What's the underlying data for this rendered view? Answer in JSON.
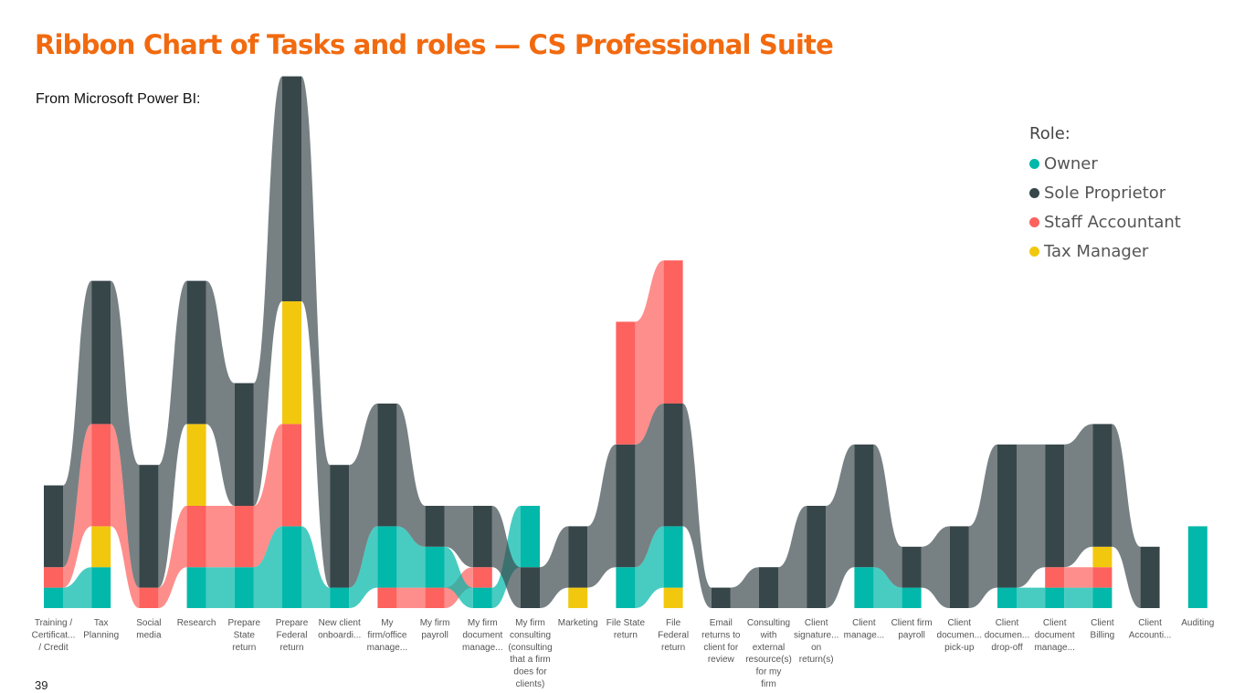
{
  "page": {
    "title": "Ribbon Chart of Tasks and roles — CS Professional Suite",
    "subtitle": "From Microsoft Power BI:",
    "page_number": "39"
  },
  "chart_data": {
    "type": "ribbon",
    "legend": {
      "title": "Role:",
      "placement": "top-right",
      "entries": [
        {
          "name": "Owner",
          "color": "#01b8aa"
        },
        {
          "name": "Sole Proprietor",
          "color": "#374649"
        },
        {
          "name": "Staff Accountant",
          "color": "#fd625e"
        },
        {
          "name": "Tax Manager",
          "color": "#f2c80f"
        }
      ]
    },
    "colors": {
      "Owner": "#01b8aa",
      "Sole Proprietor": "#374649",
      "Staff Accountant": "#fd625e",
      "Tax Manager": "#f2c80f"
    },
    "ylim": [
      0,
      26
    ],
    "categories": [
      {
        "label": [
          "Training /",
          "Certificat...",
          "/ Credit"
        ],
        "segments": [
          [
            "Owner",
            1
          ],
          [
            "Staff Accountant",
            1
          ],
          [
            "Sole Proprietor",
            4
          ]
        ]
      },
      {
        "label": [
          "Tax",
          "Planning"
        ],
        "segments": [
          [
            "Owner",
            2
          ],
          [
            "Tax Manager",
            2
          ],
          [
            "Staff Accountant",
            5
          ],
          [
            "Sole Proprietor",
            7
          ]
        ]
      },
      {
        "label": [
          "Social",
          "media"
        ],
        "segments": [
          [
            "Staff Accountant",
            1
          ],
          [
            "Sole Proprietor",
            6
          ]
        ]
      },
      {
        "label": [
          "Research"
        ],
        "segments": [
          [
            "Owner",
            2
          ],
          [
            "Staff Accountant",
            3
          ],
          [
            "Tax Manager",
            4
          ],
          [
            "Sole Proprietor",
            7
          ]
        ]
      },
      {
        "label": [
          "Prepare",
          "State",
          "return"
        ],
        "segments": [
          [
            "Owner",
            2
          ],
          [
            "Staff Accountant",
            3
          ],
          [
            "Sole Proprietor",
            6
          ]
        ]
      },
      {
        "label": [
          "Prepare",
          "Federal",
          "return"
        ],
        "segments": [
          [
            "Owner",
            4
          ],
          [
            "Staff Accountant",
            5
          ],
          [
            "Tax Manager",
            6
          ],
          [
            "Sole Proprietor",
            11
          ]
        ]
      },
      {
        "label": [
          "New client",
          "onboardi..."
        ],
        "segments": [
          [
            "Owner",
            1
          ],
          [
            "Sole Proprietor",
            6
          ]
        ]
      },
      {
        "label": [
          "My",
          "firm/office",
          "manage..."
        ],
        "segments": [
          [
            "Staff Accountant",
            1
          ],
          [
            "Owner",
            3
          ],
          [
            "Sole Proprietor",
            6
          ]
        ]
      },
      {
        "label": [
          "My firm",
          "payroll"
        ],
        "segments": [
          [
            "Staff Accountant",
            1
          ],
          [
            "Owner",
            2
          ],
          [
            "Sole Proprietor",
            2
          ]
        ]
      },
      {
        "label": [
          "My firm",
          "document",
          "manage..."
        ],
        "segments": [
          [
            "Owner",
            1
          ],
          [
            "Staff Accountant",
            1
          ],
          [
            "Sole Proprietor",
            3
          ]
        ]
      },
      {
        "label": [
          "My firm",
          "consulting",
          "(consulting",
          "that a firm",
          "does for",
          "clients)"
        ],
        "segments": [
          [
            "Sole Proprietor",
            2
          ],
          [
            "Owner",
            3
          ]
        ]
      },
      {
        "label": [
          "Marketing"
        ],
        "segments": [
          [
            "Tax Manager",
            1
          ],
          [
            "Sole Proprietor",
            3
          ]
        ]
      },
      {
        "label": [
          "File State",
          "return"
        ],
        "segments": [
          [
            "Owner",
            2
          ],
          [
            "Sole Proprietor",
            6
          ],
          [
            "Staff Accountant",
            6
          ]
        ]
      },
      {
        "label": [
          "File",
          "Federal",
          "return"
        ],
        "segments": [
          [
            "Tax Manager",
            1
          ],
          [
            "Owner",
            3
          ],
          [
            "Sole Proprietor",
            6
          ],
          [
            "Staff Accountant",
            7
          ]
        ]
      },
      {
        "label": [
          "Email",
          "returns to",
          "client for",
          "review"
        ],
        "segments": [
          [
            "Sole Proprietor",
            1
          ]
        ]
      },
      {
        "label": [
          "Consulting",
          "with",
          "external",
          "resource(s)",
          "for my",
          "firm"
        ],
        "segments": [
          [
            "Sole Proprietor",
            2
          ]
        ]
      },
      {
        "label": [
          "Client",
          "signature...",
          "on",
          "return(s)"
        ],
        "segments": [
          [
            "Sole Proprietor",
            5
          ]
        ]
      },
      {
        "label": [
          "Client",
          "manage..."
        ],
        "segments": [
          [
            "Owner",
            2
          ],
          [
            "Sole Proprietor",
            6
          ]
        ]
      },
      {
        "label": [
          "Client firm",
          "payroll"
        ],
        "segments": [
          [
            "Owner",
            1
          ],
          [
            "Sole Proprietor",
            2
          ]
        ]
      },
      {
        "label": [
          "Client",
          "documen...",
          "pick-up"
        ],
        "segments": [
          [
            "Sole Proprietor",
            4
          ]
        ]
      },
      {
        "label": [
          "Client",
          "documen...",
          "drop-off"
        ],
        "segments": [
          [
            "Owner",
            1
          ],
          [
            "Sole Proprietor",
            7
          ]
        ]
      },
      {
        "label": [
          "Client",
          "document",
          "manage..."
        ],
        "segments": [
          [
            "Owner",
            1
          ],
          [
            "Staff Accountant",
            1
          ],
          [
            "Sole Proprietor",
            6
          ]
        ]
      },
      {
        "label": [
          "Client",
          "Billing"
        ],
        "segments": [
          [
            "Owner",
            1
          ],
          [
            "Staff Accountant",
            1
          ],
          [
            "Tax Manager",
            1
          ],
          [
            "Sole Proprietor",
            6
          ]
        ]
      },
      {
        "label": [
          "Client",
          "Accounti..."
        ],
        "segments": [
          [
            "Sole Proprietor",
            3
          ]
        ]
      },
      {
        "label": [
          "Auditing"
        ],
        "segments": [
          [
            "Owner",
            4
          ]
        ]
      }
    ]
  }
}
